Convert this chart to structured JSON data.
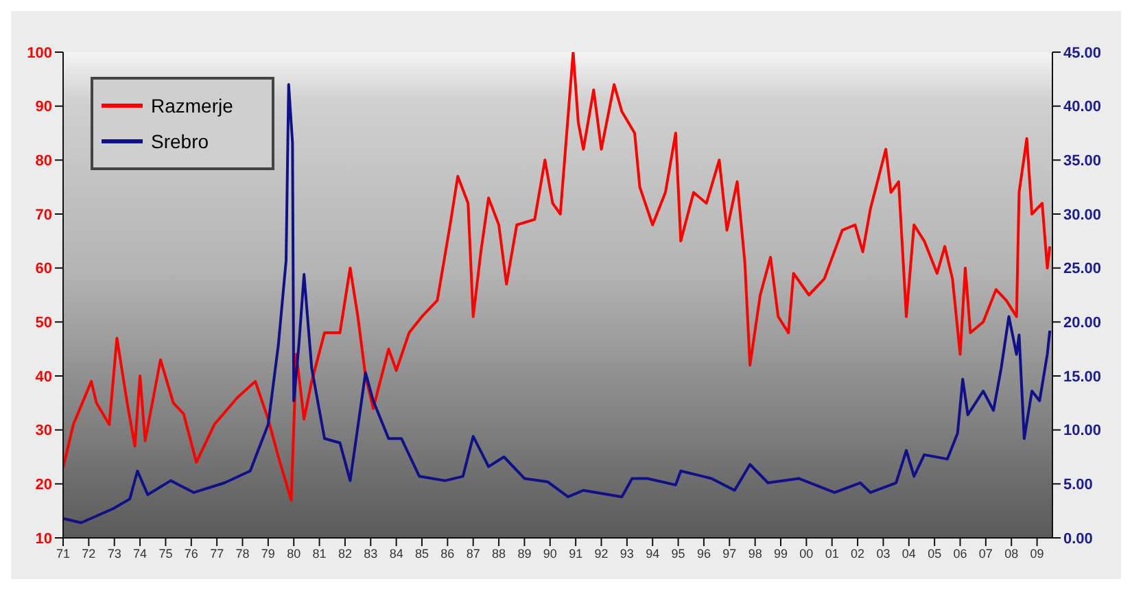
{
  "chart_data": {
    "type": "line",
    "xlim": [
      1971,
      2009.6
    ],
    "xticks": [
      {
        "value": 1971,
        "label": "71"
      },
      {
        "value": 1972,
        "label": "72"
      },
      {
        "value": 1973,
        "label": "73"
      },
      {
        "value": 1974,
        "label": "74"
      },
      {
        "value": 1975,
        "label": "75"
      },
      {
        "value": 1976,
        "label": "76"
      },
      {
        "value": 1977,
        "label": "77"
      },
      {
        "value": 1978,
        "label": "78"
      },
      {
        "value": 1979,
        "label": "79"
      },
      {
        "value": 1980,
        "label": "80"
      },
      {
        "value": 1981,
        "label": "81"
      },
      {
        "value": 1982,
        "label": "82"
      },
      {
        "value": 1983,
        "label": "83"
      },
      {
        "value": 1984,
        "label": "84"
      },
      {
        "value": 1985,
        "label": "85"
      },
      {
        "value": 1986,
        "label": "86"
      },
      {
        "value": 1987,
        "label": "87"
      },
      {
        "value": 1988,
        "label": "88"
      },
      {
        "value": 1989,
        "label": "89"
      },
      {
        "value": 1990,
        "label": "90"
      },
      {
        "value": 1991,
        "label": "91"
      },
      {
        "value": 1992,
        "label": "92"
      },
      {
        "value": 1993,
        "label": "93"
      },
      {
        "value": 1994,
        "label": "94"
      },
      {
        "value": 1995,
        "label": "95"
      },
      {
        "value": 1996,
        "label": "96"
      },
      {
        "value": 1997,
        "label": "97"
      },
      {
        "value": 1998,
        "label": "98"
      },
      {
        "value": 1999,
        "label": "99"
      },
      {
        "value": 2000,
        "label": "00"
      },
      {
        "value": 2001,
        "label": "01"
      },
      {
        "value": 2002,
        "label": "02"
      },
      {
        "value": 2003,
        "label": "03"
      },
      {
        "value": 2004,
        "label": "04"
      },
      {
        "value": 2005,
        "label": "05"
      },
      {
        "value": 2006,
        "label": "06"
      },
      {
        "value": 2007,
        "label": "07"
      },
      {
        "value": 2008,
        "label": "08"
      },
      {
        "value": 2009,
        "label": "09"
      }
    ],
    "ylim": [
      10,
      100
    ],
    "yticks": [
      10,
      20,
      30,
      40,
      50,
      60,
      70,
      80,
      90,
      100
    ],
    "y2lim": [
      0,
      45
    ],
    "y2ticks": [
      {
        "value": 0,
        "label": "0.00"
      },
      {
        "value": 5,
        "label": "5.00"
      },
      {
        "value": 10,
        "label": "10.00"
      },
      {
        "value": 15,
        "label": "15.00"
      },
      {
        "value": 20,
        "label": "20.00"
      },
      {
        "value": 25,
        "label": "25.00"
      },
      {
        "value": 30,
        "label": "30.00"
      },
      {
        "value": 35,
        "label": "35.00"
      },
      {
        "value": 40,
        "label": "40.00"
      },
      {
        "value": 45,
        "label": "45.00"
      }
    ],
    "grid": false,
    "legend": "top left",
    "marker": "none",
    "series": [
      {
        "name": "Razmerje",
        "color": "#ff0000",
        "axis": "y",
        "x": [
          1971.0,
          1971.4,
          1972.1,
          1972.3,
          1972.8,
          1973.1,
          1973.5,
          1973.8,
          1974.0,
          1974.2,
          1974.8,
          1975.3,
          1975.7,
          1976.2,
          1976.9,
          1977.8,
          1978.5,
          1979.0,
          1979.4,
          1979.9,
          1980.1,
          1980.4,
          1980.7,
          1981.2,
          1981.8,
          1982.2,
          1982.5,
          1982.8,
          1983.1,
          1983.7,
          1984.0,
          1984.5,
          1985.0,
          1985.6,
          1986.1,
          1986.4,
          1986.8,
          1987.0,
          1987.3,
          1987.6,
          1988.0,
          1988.3,
          1988.7,
          1989.4,
          1989.8,
          1990.1,
          1990.4,
          1990.9,
          1991.1,
          1991.3,
          1991.7,
          1992.0,
          1992.5,
          1992.8,
          1993.3,
          1993.5,
          1994.0,
          1994.5,
          1994.9,
          1995.1,
          1995.6,
          1996.1,
          1996.6,
          1996.9,
          1997.3,
          1997.6,
          1997.8,
          1998.2,
          1998.6,
          1998.9,
          1999.3,
          1999.5,
          2000.1,
          2000.7,
          2001.4,
          2001.9,
          2002.2,
          2002.5,
          2003.1,
          2003.3,
          2003.6,
          2003.9,
          2004.2,
          2004.6,
          2005.1,
          2005.4,
          2005.7,
          2006.0,
          2006.2,
          2006.4,
          2006.9,
          2007.4,
          2007.8,
          2008.2,
          2008.3,
          2008.6,
          2008.8,
          2009.2,
          2009.4,
          2009.5
        ],
        "values": [
          23,
          31,
          39,
          35,
          31,
          47,
          35,
          27,
          40,
          28,
          43,
          35,
          33,
          24,
          31,
          36,
          39,
          32,
          25,
          17,
          44,
          32,
          39,
          48,
          48,
          60,
          51,
          40,
          34,
          45,
          41,
          48,
          51,
          54,
          68,
          77,
          72,
          51,
          63,
          73,
          68,
          57,
          68,
          69,
          80,
          72,
          70,
          100,
          87,
          82,
          93,
          82,
          94,
          89,
          85,
          75,
          68,
          74,
          85,
          65,
          74,
          72,
          80,
          67,
          76,
          61,
          42,
          55,
          62,
          51,
          48,
          59,
          55,
          58,
          67,
          68,
          63,
          71,
          82,
          74,
          76,
          51,
          68,
          65,
          59,
          64,
          58,
          44,
          60,
          48,
          50,
          56,
          54,
          51,
          74,
          84,
          70,
          72,
          60,
          64
        ]
      },
      {
        "name": "Srebro",
        "color": "#10108a",
        "axis": "y2",
        "x": [
          1971.0,
          1971.7,
          1972.95,
          1973.6,
          1973.9,
          1974.3,
          1975.2,
          1976.1,
          1977.3,
          1978.3,
          1979.0,
          1979.4,
          1979.7,
          1979.8,
          1979.95,
          1980.0,
          1980.2,
          1980.4,
          1980.7,
          1981.2,
          1981.8,
          1982.2,
          1982.8,
          1983.1,
          1983.7,
          1984.2,
          1984.9,
          1985.9,
          1986.6,
          1987.0,
          1987.6,
          1988.2,
          1989.0,
          1989.9,
          1990.7,
          1991.3,
          1992.8,
          1993.2,
          1993.8,
          1994.9,
          1995.1,
          1996.3,
          1997.2,
          1997.8,
          1998.5,
          1999.7,
          2001.1,
          2002.1,
          2002.5,
          2003.5,
          2003.9,
          2004.2,
          2004.6,
          2005.5,
          2005.9,
          2006.1,
          2006.3,
          2006.9,
          2007.3,
          2007.6,
          2007.9,
          2008.2,
          2008.3,
          2008.5,
          2008.8,
          2009.1,
          2009.4,
          2009.5
        ],
        "values": [
          1.8,
          1.4,
          2.7,
          3.6,
          6.2,
          4.0,
          5.3,
          4.2,
          5.1,
          6.2,
          10.5,
          17.9,
          25.7,
          42.0,
          36.6,
          12.7,
          17.9,
          24.4,
          15.7,
          9.2,
          8.8,
          5.3,
          15.3,
          12.7,
          9.2,
          9.2,
          5.7,
          5.3,
          5.7,
          9.4,
          6.6,
          7.5,
          5.5,
          5.2,
          3.8,
          4.4,
          3.8,
          5.5,
          5.5,
          4.9,
          6.2,
          5.5,
          4.4,
          6.8,
          5.1,
          5.5,
          4.2,
          5.1,
          4.2,
          5.1,
          8.1,
          5.7,
          7.7,
          7.3,
          9.7,
          14.7,
          11.4,
          13.6,
          11.8,
          15.7,
          20.5,
          17.0,
          18.8,
          9.2,
          13.6,
          12.7,
          17.0,
          19.2
        ]
      }
    ]
  }
}
